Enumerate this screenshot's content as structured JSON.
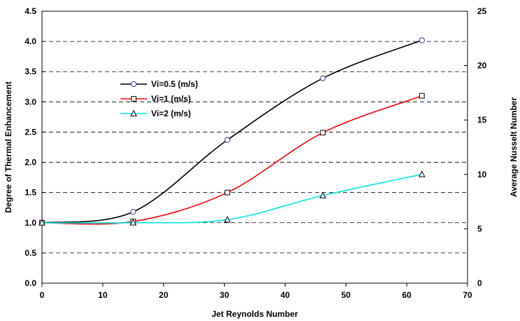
{
  "chart_data": {
    "type": "line",
    "title": "",
    "xlabel": "Jet Reynolds Number",
    "ylabel": "Degree of Thermal Enhancement",
    "y2label": "Average Nusselt Number",
    "xlim": [
      0,
      70
    ],
    "ylim": [
      0,
      4.5
    ],
    "y2lim": [
      0,
      25
    ],
    "x_ticks": [
      "0",
      "10",
      "20",
      "30",
      "40",
      "50",
      "60",
      "70"
    ],
    "y_ticks": [
      "0.0",
      "0.5",
      "1.0",
      "1.5",
      "2.0",
      "2.5",
      "3.0",
      "3.5",
      "4.0",
      "4.5"
    ],
    "y2_ticks": [
      "0",
      "5",
      "10",
      "15",
      "20",
      "25"
    ],
    "grid": "horizontal-dashed",
    "legend_position": "upper-left",
    "series": [
      {
        "name": "Vi=0.5 (m/s)",
        "color": "#000000",
        "marker": "circle",
        "x": [
          0,
          15,
          30.5,
          46.2,
          62.5
        ],
        "y": [
          1.0,
          1.18,
          2.37,
          3.39,
          4.02
        ]
      },
      {
        "name": "Vi=1 (m/s)",
        "color": "#ff0000",
        "marker": "square",
        "x": [
          0,
          15,
          30.5,
          46.2,
          62.5
        ],
        "y": [
          1.0,
          1.02,
          1.5,
          2.49,
          3.1
        ]
      },
      {
        "name": "Vi=2 (m/s)",
        "color": "#00e5e5",
        "marker": "triangle",
        "x": [
          0,
          15,
          30.5,
          46.2,
          62.5
        ],
        "y": [
          1.0,
          1.0,
          1.05,
          1.45,
          1.8
        ]
      }
    ]
  }
}
